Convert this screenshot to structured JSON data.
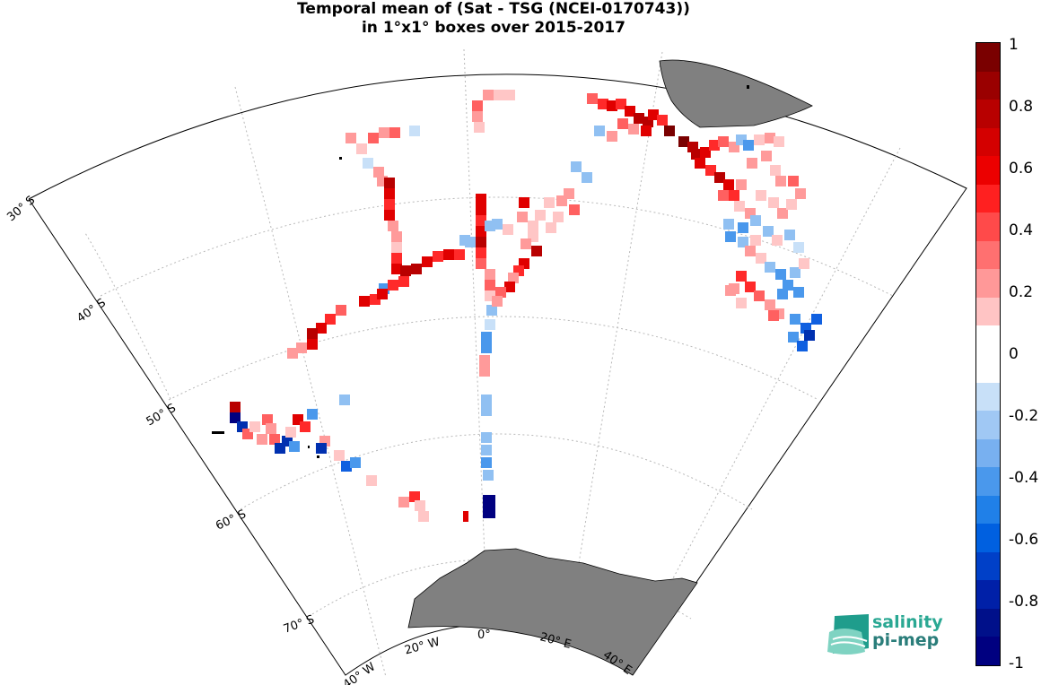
{
  "title": {
    "line1": "Temporal mean of (Sat - TSG (NCEI-0170743))",
    "line2": "in 1°x1° boxes over 2015-2017"
  },
  "lat_labels": [
    "30° S",
    "40° S",
    "50° S",
    "60° S",
    "70° S"
  ],
  "lon_labels": [
    "40° W",
    "20° W",
    "0°",
    "20° E",
    "40° E"
  ],
  "colorbar": {
    "ticks": [
      "1",
      "0.8",
      "0.6",
      "0.4",
      "0.2",
      "0",
      "-0.2",
      "-0.4",
      "-0.6",
      "-0.8",
      "-1"
    ],
    "colors": [
      "#7a0000",
      "#9a0000",
      "#b80000",
      "#d40000",
      "#ec0000",
      "#ff2020",
      "#ff4a4a",
      "#ff7070",
      "#ff9898",
      "#ffc4c4",
      "#ffffff",
      "#ffffff",
      "#c8e0f8",
      "#a0c8f4",
      "#78b0f0",
      "#4a98ec",
      "#2080e8",
      "#0060e0",
      "#0040c8",
      "#0020a8",
      "#00108a",
      "#000080"
    ]
  },
  "logo": {
    "line1": "salinity",
    "line2": "pi-mep"
  },
  "colors": {
    "land": "#808080",
    "grid": "#b0b0b0"
  },
  "map_data": {
    "variable": "Sat - TSG mean difference",
    "range": [
      -1,
      1
    ],
    "region": "South Atlantic / Southern Ocean, 30°S–70°S, 40°W–40°E"
  }
}
